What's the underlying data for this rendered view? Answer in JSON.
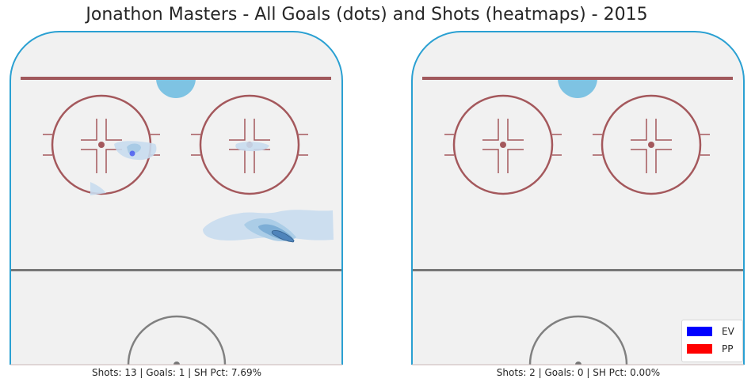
{
  "figure": {
    "title": "Jonathon Masters - All Goals (dots) and Shots (heatmaps) - 2015"
  },
  "colors": {
    "ice": "#f1f1f1",
    "boards": "#2aa0d2",
    "goal_line": "#a0585c",
    "faceoff": "#a4585c",
    "blue_line": "#777777",
    "crease": "#7ec3e3",
    "heat": [
      "#c8dcee",
      "#a9cbe6",
      "#7daed6",
      "#4f84bb"
    ],
    "ev": "#0000ff",
    "pp": "#ff0000"
  },
  "chart_data": [
    {
      "type": "heatmap",
      "panel": "left",
      "caption": "Shots: 13 | Goals: 1 | SH Pct: 7.69%",
      "shots": 13,
      "goals": 1,
      "sh_pct": "7.69%"
    },
    {
      "type": "heatmap",
      "panel": "right",
      "caption": "Shots: 2 | Goals: 0 | SH Pct: 0.00%",
      "shots": 2,
      "goals": 0,
      "sh_pct": "0.00%",
      "legend": {
        "placement": "bottom-right",
        "entries": [
          {
            "label": "EV",
            "color": "#0000ff"
          },
          {
            "label": "PP",
            "color": "#ff0000"
          }
        ]
      }
    }
  ]
}
